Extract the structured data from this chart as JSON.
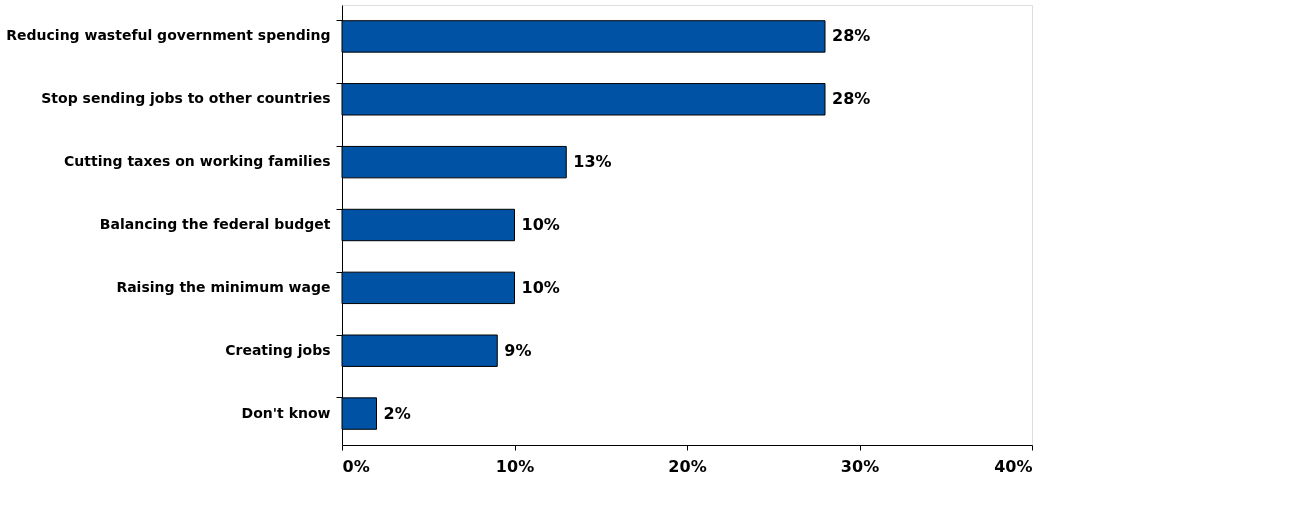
{
  "chart_data": {
    "type": "bar",
    "orientation": "horizontal",
    "categories": [
      "Reducing wasteful government spending",
      "Stop sending jobs to other countries",
      "Cutting taxes on working families",
      "Balancing the federal budget",
      "Raising the minimum  wage",
      "Creating jobs",
      "Don't know"
    ],
    "values": [
      28,
      28,
      13,
      10,
      10,
      9,
      2
    ],
    "color": "#0052a5",
    "value_labels": [
      "28%",
      "28%",
      "13%",
      "10%",
      "10%",
      "9%",
      "2%"
    ],
    "xlim": [
      0,
      40
    ],
    "xticks": [
      {
        "value": 0,
        "label": "0%"
      },
      {
        "value": 10,
        "label": "10%"
      },
      {
        "value": 20,
        "label": "20%"
      },
      {
        "value": 30,
        "label": "30%"
      },
      {
        "value": 40,
        "label": "40%"
      }
    ],
    "grid": false
  }
}
